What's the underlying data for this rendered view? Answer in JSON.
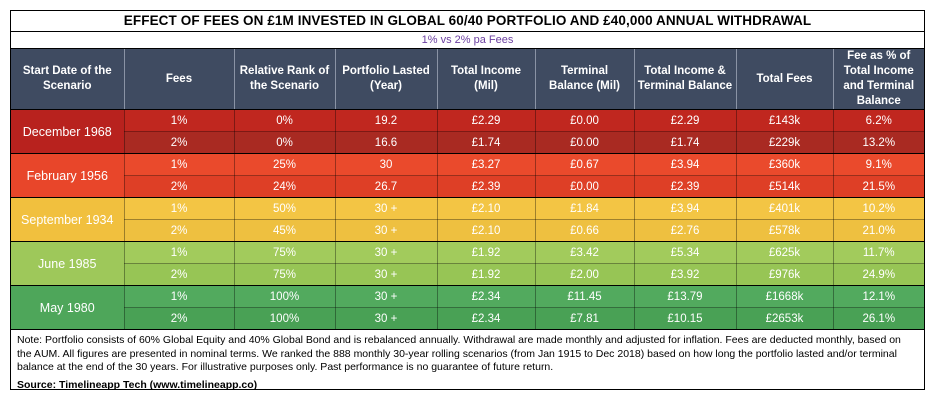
{
  "title": "EFFECT OF FEES ON £1M INVESTED IN GLOBAL 60/40 PORTFOLIO AND £40,000 ANNUAL WITHDRAWAL",
  "subtitle": "1% vs 2% pa Fees",
  "headers": [
    "Start Date of the Scenario",
    "Fees",
    "Relative Rank of the Scenario",
    "Portfolio Lasted (Year)",
    "Total Income (Mil)",
    "Terminal  Balance (Mil)",
    "Total Income & Terminal Balance",
    "Total Fees",
    "Fee  as % of Total Income and Terminal Balance"
  ],
  "scenarios": [
    {
      "date": "December 1968",
      "colors": {
        "date": "#b8221e",
        "row1": "#c0271f",
        "row2": "#a92a22"
      },
      "rows": [
        [
          "1%",
          "0%",
          "19.2",
          "£2.29",
          "£0.00",
          "£2.29",
          "£143k",
          "6.2%"
        ],
        [
          "2%",
          "0%",
          "16.6",
          "£1.74",
          "£0.00",
          "£1.74",
          "£229k",
          "13.2%"
        ]
      ]
    },
    {
      "date": "February 1956",
      "colors": {
        "date": "#e8462a",
        "row1": "#ea4a2c",
        "row2": "#de3f26"
      },
      "rows": [
        [
          "1%",
          "25%",
          "30",
          "£3.27",
          "£0.67",
          "£3.94",
          "£360k",
          "9.1%"
        ],
        [
          "2%",
          "24%",
          "26.7",
          "£2.39",
          "£0.00",
          "£2.39",
          "£514k",
          "21.5%"
        ]
      ]
    },
    {
      "date": "September 1934",
      "colors": {
        "date": "#f1c03e",
        "row1": "#f3c544",
        "row2": "#eec040"
      },
      "rows": [
        [
          "1%",
          "50%",
          "30 +",
          "£2.10",
          "£1.84",
          "£3.94",
          "£401k",
          "10.2%"
        ],
        [
          "2%",
          "45%",
          "30 +",
          "£2.10",
          "£0.66",
          "£2.76",
          "£578k",
          "21.0%"
        ]
      ]
    },
    {
      "date": "June 1985",
      "colors": {
        "date": "#9ec85a",
        "row1": "#a2cb5c",
        "row2": "#97c555"
      },
      "rows": [
        [
          "1%",
          "75%",
          "30 +",
          "£1.92",
          "£3.42",
          "£5.34",
          "£625k",
          "11.7%"
        ],
        [
          "2%",
          "75%",
          "30 +",
          "£1.92",
          "£2.00",
          "£3.92",
          "£976k",
          "24.9%"
        ]
      ]
    },
    {
      "date": "May 1980",
      "colors": {
        "date": "#4ea65a",
        "row1": "#52aa5e",
        "row2": "#49a155"
      },
      "rows": [
        [
          "1%",
          "100%",
          "30 +",
          "£2.34",
          "£11.45",
          "£13.79",
          "£1668k",
          "12.1%"
        ],
        [
          "2%",
          "100%",
          "30 +",
          "£2.34",
          "£7.81",
          "£10.15",
          "£2653k",
          "26.1%"
        ]
      ]
    }
  ],
  "note": "Note: Portfolio consists of 60% Global Equity and 40% Global Bond and is rebalanced annually. Withdrawal are made monthly and adjusted for inflation. Fees are deducted monthly, based on the AUM. All figures are presented in nominal terms. We ranked the 888 monthly 30-year rolling scenarios (from Jan 1915 to Dec 2018) based on how long the portfolio lasted and/or terminal balance at the end of the 30 years. For illustrative purposes only. Past performance is no guarantee of future return.",
  "source": "Source: Timelineapp Tech  (www.timelineapp.co)"
}
